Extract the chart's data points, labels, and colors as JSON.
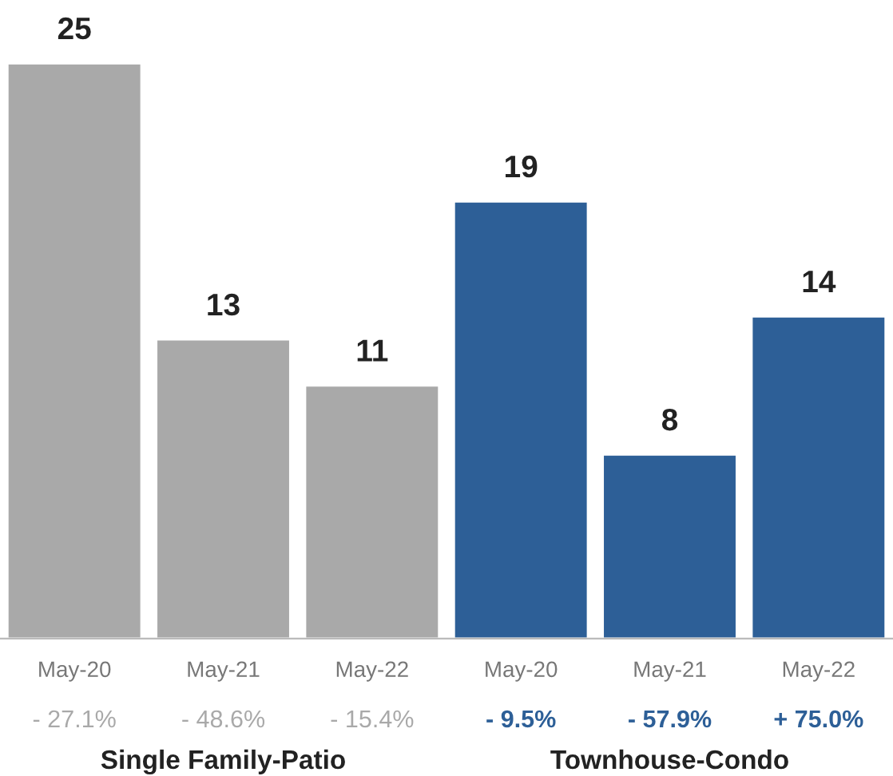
{
  "chart_data": {
    "type": "bar",
    "categories": [
      "May-20",
      "May-21",
      "May-22",
      "May-20",
      "May-21",
      "May-22"
    ],
    "values": [
      25,
      13,
      11,
      19,
      8,
      14
    ],
    "colors": [
      "#a9a9a9",
      "#a9a9a9",
      "#a9a9a9",
      "#2d5f97",
      "#2d5f97",
      "#2d5f97"
    ],
    "data_labels": true,
    "grid": false,
    "legend": false,
    "annotations": [
      "- 27.1%",
      "- 48.6%",
      "- 15.4%",
      "- 9.5%",
      "- 57.9%",
      "+ 75.0%",
      "Single Family-Patio",
      "Townhouse-Condo"
    ]
  }
}
